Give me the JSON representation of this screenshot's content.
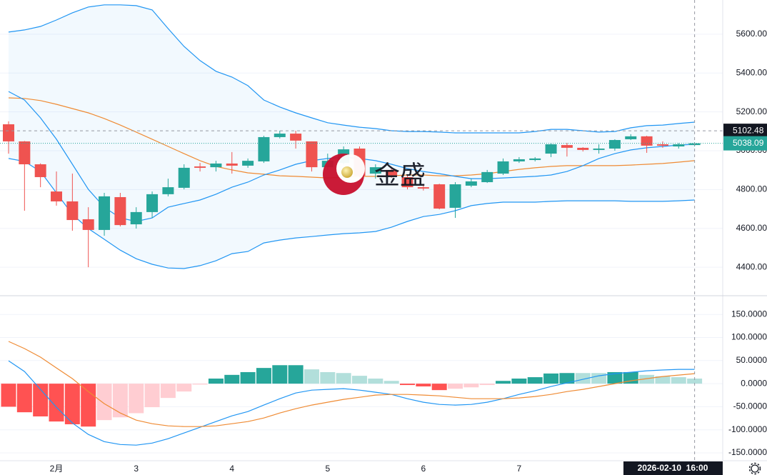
{
  "chart_data": [
    {
      "type": "candlestick",
      "categories": [
        null,
        null,
        null,
        "2月",
        null,
        null,
        null,
        null,
        "3",
        null,
        null,
        null,
        null,
        null,
        "4",
        null,
        null,
        null,
        null,
        null,
        "5",
        null,
        null,
        null,
        null,
        null,
        "6",
        null,
        null,
        null,
        null,
        null,
        "7",
        null,
        null,
        null,
        null,
        null,
        null,
        null,
        null,
        null,
        null,
        null
      ],
      "open": [
        5136,
        5048,
        4930,
        4790,
        4739,
        4647,
        4592,
        4761,
        4621,
        4684,
        4776,
        4809,
        4919,
        4915,
        4934,
        4923,
        4945,
        5070,
        5088,
        5048,
        4915,
        4937,
        5011,
        4882,
        4901,
        4864,
        4812,
        4827,
        4706,
        4820,
        4838,
        4882,
        4945,
        4952,
        4985,
        5029,
        5015,
        5004,
        5011,
        5059,
        5074,
        5033,
        5022,
        5029
      ],
      "high": [
        5151,
        5050,
        4935,
        4893,
        4882,
        4709,
        4783,
        4783,
        4709,
        4790,
        4856,
        4930,
        4937,
        4948,
        4993,
        4960,
        5077,
        5103,
        5103,
        5048,
        4985,
        5022,
        5022,
        4930,
        4915,
        4875,
        4820,
        4830,
        4838,
        4856,
        4901,
        4960,
        4967,
        4967,
        5040,
        5040,
        5018,
        5033,
        5059,
        5085,
        5077,
        5048,
        5040,
        5044
      ],
      "low": [
        4985,
        4691,
        4812,
        4717,
        4588,
        4400,
        4562,
        4610,
        4599,
        4654,
        4765,
        4801,
        4893,
        4893,
        4882,
        4912,
        4937,
        5063,
        5011,
        4893,
        4901,
        4930,
        4864,
        4856,
        4860,
        4801,
        4795,
        4698,
        4654,
        4812,
        4834,
        4875,
        4937,
        4945,
        4967,
        4970,
        4996,
        4985,
        5000,
        5055,
        4989,
        5015,
        5011,
        5022
      ],
      "close": [
        5048,
        4930,
        4864,
        4739,
        4643,
        4592,
        4765,
        4617,
        4684,
        4776,
        4812,
        4912,
        4912,
        4934,
        4923,
        4948,
        5070,
        5088,
        5052,
        4915,
        4948,
        5007,
        4871,
        4915,
        4871,
        4812,
        4805,
        4702,
        4827,
        4842,
        4890,
        4945,
        4956,
        4960,
        5033,
        5015,
        5004,
        5011,
        5055,
        5074,
        5026,
        5026,
        5033,
        5038.09
      ],
      "up_color": "#26a69a",
      "down_color": "#ef5350",
      "band_fill": "#2196f3",
      "lines": [
        {
          "color": "#2196f3",
          "values": [
            5611,
            5622,
            5640,
            5673,
            5710,
            5740,
            5751,
            5751,
            5747,
            5725,
            5629,
            5537,
            5464,
            5409,
            5379,
            5335,
            5261,
            5225,
            5195,
            5169,
            5144,
            5132,
            5121,
            5114,
            5103,
            5099,
            5099,
            5096,
            5092,
            5092,
            5092,
            5092,
            5092,
            5099,
            5110,
            5110,
            5103,
            5096,
            5099,
            5118,
            5129,
            5132,
            5140,
            5147
          ]
        },
        {
          "color": "#ef8b34",
          "values": [
            5272,
            5269,
            5258,
            5239,
            5217,
            5195,
            5166,
            5132,
            5096,
            5059,
            5022,
            4985,
            4949,
            4919,
            4901,
            4886,
            4879,
            4871,
            4868,
            4864,
            4860,
            4864,
            4868,
            4868,
            4871,
            4875,
            4875,
            4871,
            4871,
            4875,
            4882,
            4893,
            4904,
            4912,
            4919,
            4923,
            4923,
            4923,
            4923,
            4926,
            4930,
            4934,
            4941,
            4949
          ]
        },
        {
          "color": "#2196f3",
          "values": [
            4960,
            4945,
            4893,
            4783,
            4672,
            4599,
            4544,
            4488,
            4444,
            4415,
            4396,
            4393,
            4408,
            4433,
            4470,
            4481,
            4525,
            4540,
            4551,
            4558,
            4566,
            4573,
            4577,
            4584,
            4606,
            4636,
            4661,
            4672,
            4691,
            4717,
            4728,
            4735,
            4735,
            4735,
            4739,
            4742,
            4742,
            4742,
            4742,
            4739,
            4739,
            4739,
            4742,
            4746
          ]
        },
        {
          "color": "#2196f3",
          "values": [
            5305,
            5261,
            5169,
            5059,
            4930,
            4801,
            4709,
            4654,
            4636,
            4654,
            4709,
            4728,
            4746,
            4776,
            4812,
            4838,
            4875,
            4901,
            4930,
            4949,
            4960,
            4967,
            4960,
            4949,
            4930,
            4908,
            4893,
            4882,
            4868,
            4856,
            4856,
            4860,
            4864,
            4868,
            4875,
            4893,
            4923,
            4960,
            4985,
            5004,
            5015,
            5022,
            5029,
            5033
          ]
        }
      ],
      "ylim": [
        4257,
        5776
      ],
      "yticks": [
        {
          "value": 4400,
          "label": "4400.00"
        },
        {
          "value": 4600,
          "label": "4600.00"
        },
        {
          "value": 4800,
          "label": "4800.00"
        },
        {
          "value": 5000,
          "label": "5000.00"
        },
        {
          "value": 5200,
          "label": "5200.00"
        },
        {
          "value": 5400,
          "label": "5400.00"
        },
        {
          "value": 5600,
          "label": "5600.00"
        }
      ],
      "grid": true,
      "crosshair_price": 5102.48,
      "last_price": 5038.09,
      "crosshair_time": "2026-02-10  16:00",
      "watermark": "金盛"
    },
    {
      "type": "macd",
      "histogram": {
        "values": [
          -50,
          -62,
          -71,
          -82,
          -88,
          -93,
          -79,
          -73,
          -64,
          -51,
          -31,
          -17,
          -2,
          11,
          19,
          25,
          34,
          40,
          40,
          31,
          25,
          23,
          17,
          11,
          6,
          -3,
          -6,
          -14,
          -11,
          -8,
          -3,
          6,
          11,
          14,
          22,
          23,
          23,
          23,
          25,
          25,
          19,
          16,
          14,
          11
        ],
        "colors": [
          "#ff5252",
          "#ff5252",
          "#ff5252",
          "#ff5252",
          "#ff5252",
          "#ff5252",
          "#ffcdd2",
          "#ffcdd2",
          "#ffcdd2",
          "#ffcdd2",
          "#ffcdd2",
          "#ffcdd2",
          "#ffcdd2",
          "#26a69a",
          "#26a69a",
          "#26a69a",
          "#26a69a",
          "#26a69a",
          "#26a69a",
          "#b2dfdb",
          "#b2dfdb",
          "#b2dfdb",
          "#b2dfdb",
          "#b2dfdb",
          "#b2dfdb",
          "#ff5252",
          "#ff5252",
          "#ff5252",
          "#ffcdd2",
          "#ffcdd2",
          "#ffcdd2",
          "#26a69a",
          "#26a69a",
          "#26a69a",
          "#26a69a",
          "#26a69a",
          "#b2dfdb",
          "#b2dfdb",
          "#26a69a",
          "#26a69a",
          "#b2dfdb",
          "#b2dfdb",
          "#b2dfdb",
          "#b2dfdb"
        ]
      },
      "lines": [
        {
          "color": "#2196f3",
          "values": [
            49.6,
            26.4,
            -12.4,
            -51.2,
            -85.3,
            -110,
            -125.6,
            -131.8,
            -133.3,
            -128.7,
            -119.4,
            -107,
            -94.6,
            -82.2,
            -69.8,
            -60.5,
            -46.5,
            -32.6,
            -20.2,
            -14,
            -12.4,
            -10.9,
            -14,
            -18.6,
            -23.3,
            -32.6,
            -40.3,
            -45,
            -46.5,
            -45,
            -40.3,
            -32.6,
            -23.3,
            -15.5,
            -6.2,
            1.6,
            9.3,
            17.1,
            21.7,
            24.8,
            27.9,
            29.5,
            31,
            31
          ]
        },
        {
          "color": "#ef8b34",
          "values": [
            91.5,
            76,
            57.4,
            34.1,
            10.9,
            -17.1,
            -43.4,
            -63.6,
            -79.1,
            -86.8,
            -91.5,
            -93,
            -93,
            -91.5,
            -86.8,
            -82.2,
            -74.4,
            -63.6,
            -54.3,
            -46.5,
            -40.3,
            -34.1,
            -29.5,
            -24.8,
            -23.3,
            -23.3,
            -24.8,
            -26.4,
            -29.5,
            -32.6,
            -32.6,
            -32.6,
            -31,
            -27.9,
            -23.3,
            -17.1,
            -12.4,
            -6.2,
            0,
            6.2,
            10.9,
            15.5,
            18.6,
            21.7
          ]
        }
      ],
      "ylim": [
        -167,
        189
      ],
      "yticks": [
        {
          "value": -150,
          "label": "-150.0000"
        },
        {
          "value": -100,
          "label": "-100.0000"
        },
        {
          "value": -50,
          "label": "-50.0000"
        },
        {
          "value": 0,
          "label": "0.0000"
        },
        {
          "value": 50,
          "label": "50.0000"
        },
        {
          "value": 100,
          "label": "100.0000"
        },
        {
          "value": 150,
          "label": "150.0000"
        }
      ],
      "grid": true
    }
  ]
}
